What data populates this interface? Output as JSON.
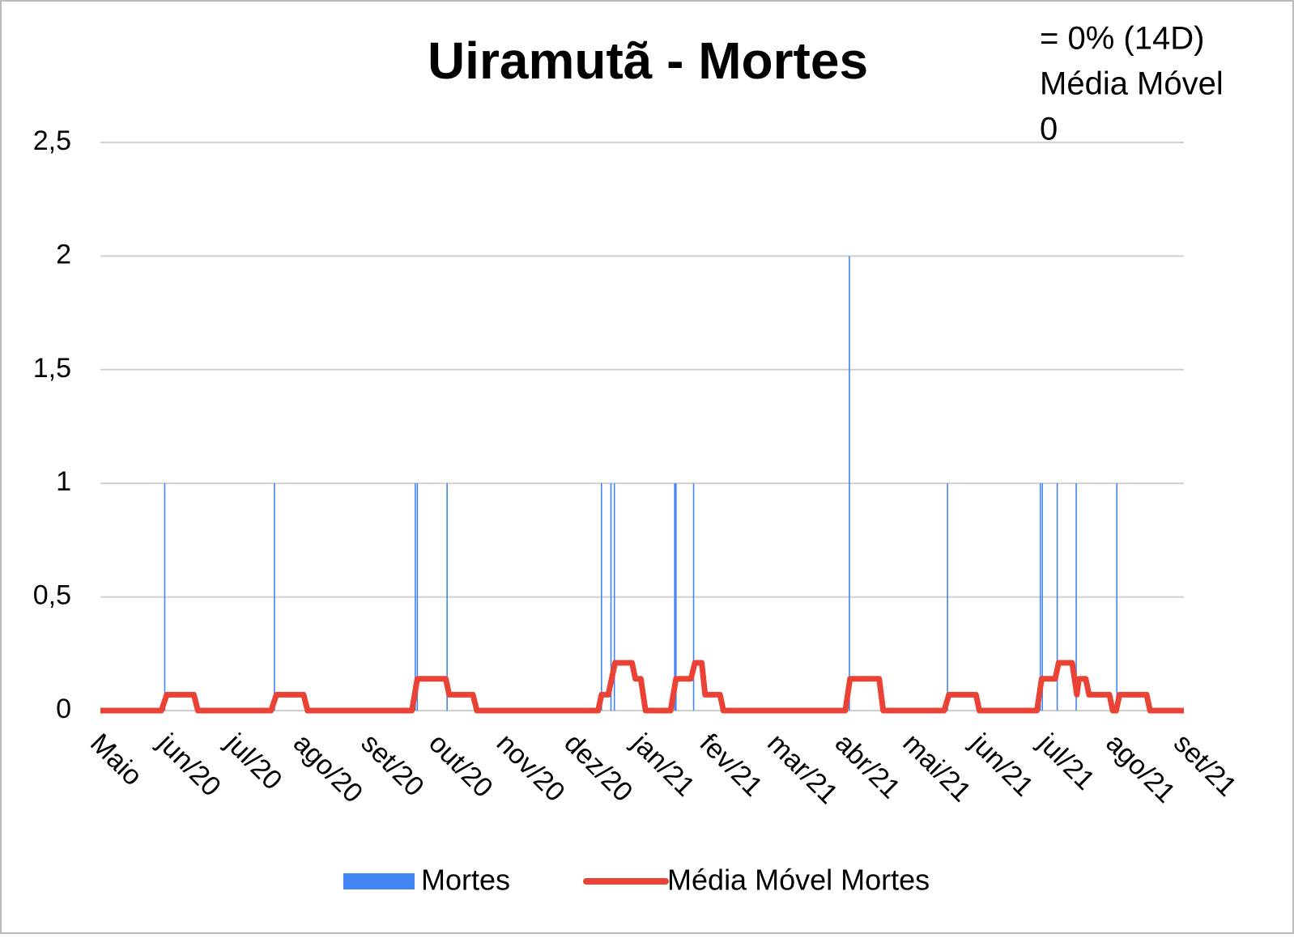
{
  "chart_data": {
    "type": "bar",
    "title": "Uiramutã - Mortes",
    "annotation": [
      "= 0% (14D)",
      "Média Móvel",
      "0"
    ],
    "xlim": [
      0,
      16
    ],
    "xticks": [
      {
        "value": 0,
        "label": "Maio"
      },
      {
        "value": 1,
        "label": "jun/20"
      },
      {
        "value": 2,
        "label": "jul/20"
      },
      {
        "value": 3,
        "label": "ago/20"
      },
      {
        "value": 4,
        "label": "set/20"
      },
      {
        "value": 5,
        "label": "out/20"
      },
      {
        "value": 6,
        "label": "nov/20"
      },
      {
        "value": 7,
        "label": "dez/20"
      },
      {
        "value": 8,
        "label": "jan/21"
      },
      {
        "value": 9,
        "label": "fev/21"
      },
      {
        "value": 10,
        "label": "mar/21"
      },
      {
        "value": 11,
        "label": "abr/21"
      },
      {
        "value": 12,
        "label": "mai/21"
      },
      {
        "value": 13,
        "label": "jun/21"
      },
      {
        "value": 14,
        "label": "jul/21"
      },
      {
        "value": 15,
        "label": "ago/21"
      },
      {
        "value": 16,
        "label": "set/21"
      }
    ],
    "ylim": [
      0,
      2.5
    ],
    "yticks": [
      0,
      {
        "value": 0.5,
        "label": "0,5"
      },
      1,
      {
        "value": 1.5,
        "label": "1,5"
      },
      2,
      {
        "value": 2.5,
        "label": "2,5"
      }
    ],
    "grid": true,
    "legend": "bottom",
    "series": [
      {
        "name": "Mortes",
        "color": "#4285f4",
        "type": "bar",
        "x": [
          0.95,
          2.57,
          4.65,
          4.68,
          5.12,
          7.4,
          7.54,
          7.59,
          8.48,
          8.5,
          8.76,
          11.06,
          12.51,
          13.88,
          13.91,
          14.13,
          14.41,
          15.01
        ],
        "values": [
          1,
          1,
          1,
          1,
          1,
          1,
          1,
          1,
          1,
          1,
          1,
          2,
          1,
          1,
          1,
          1,
          1,
          1
        ]
      },
      {
        "name": "Média Móvel Mortes",
        "color": "#ea4335",
        "type": "line",
        "x": [
          0,
          0.9,
          0.98,
          1.38,
          1.44,
          2.52,
          2.6,
          3.0,
          3.06,
          4.6,
          4.68,
          5.1,
          5.15,
          5.5,
          5.56,
          7.35,
          7.4,
          7.5,
          7.55,
          7.6,
          7.85,
          7.9,
          7.98,
          8.05,
          8.42,
          8.5,
          8.72,
          8.78,
          8.88,
          8.93,
          9.15,
          9.2,
          11.0,
          11.07,
          11.5,
          11.56,
          12.46,
          12.53,
          12.93,
          12.98,
          13.83,
          13.9,
          14.1,
          14.15,
          14.35,
          14.42,
          14.45,
          14.55,
          14.6,
          14.9,
          14.95,
          15.0,
          15.05,
          15.45,
          15.5,
          16
        ],
        "values": [
          0,
          0,
          0.07,
          0.07,
          0,
          0,
          0.07,
          0.07,
          0,
          0,
          0.14,
          0.14,
          0.07,
          0.07,
          0,
          0,
          0.07,
          0.07,
          0.14,
          0.21,
          0.21,
          0.14,
          0.14,
          0,
          0,
          0.14,
          0.14,
          0.21,
          0.21,
          0.07,
          0.07,
          0,
          0,
          0.14,
          0.14,
          0,
          0,
          0.07,
          0.07,
          0,
          0,
          0.14,
          0.14,
          0.21,
          0.21,
          0.07,
          0.14,
          0.14,
          0.07,
          0.07,
          0,
          0,
          0.07,
          0.07,
          0,
          0
        ]
      }
    ]
  }
}
